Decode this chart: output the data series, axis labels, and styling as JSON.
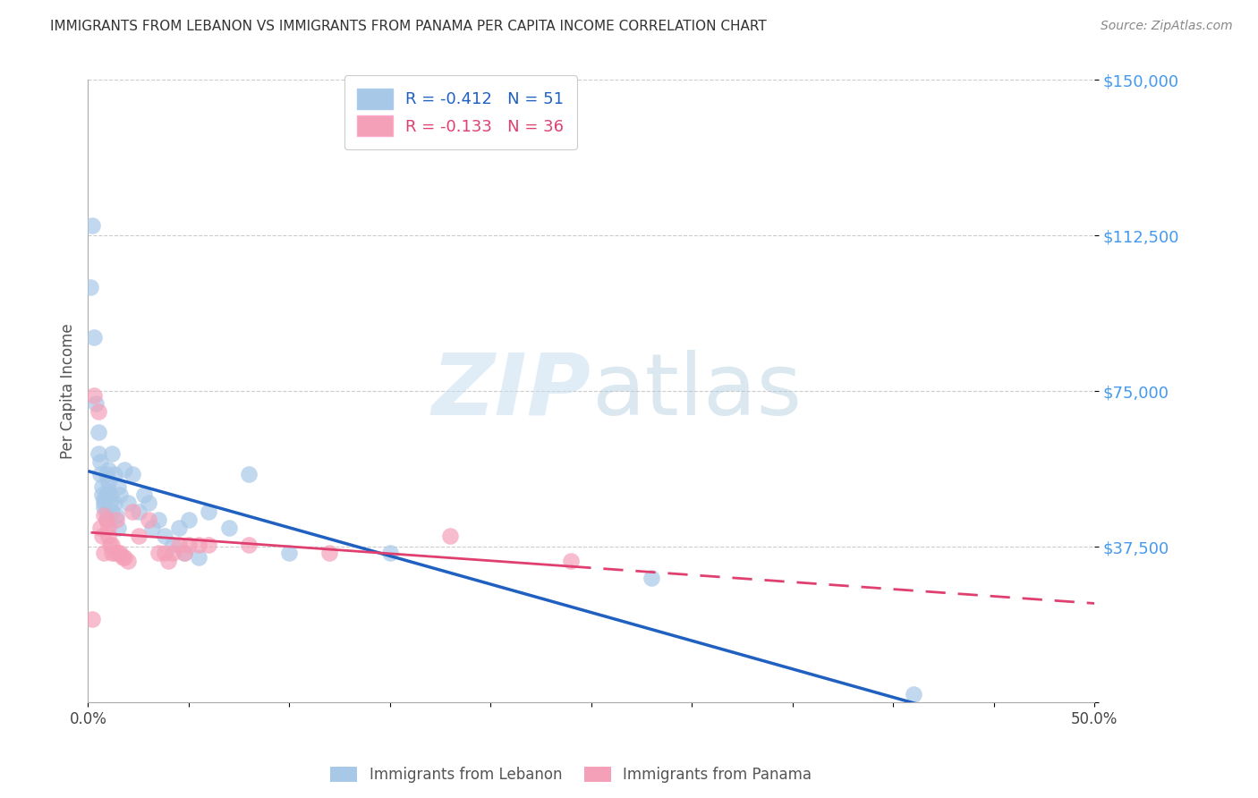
{
  "title": "IMMIGRANTS FROM LEBANON VS IMMIGRANTS FROM PANAMA PER CAPITA INCOME CORRELATION CHART",
  "source": "Source: ZipAtlas.com",
  "ylabel": "Per Capita Income",
  "xlim": [
    0,
    0.5
  ],
  "ylim": [
    0,
    150000
  ],
  "yticks": [
    0,
    37500,
    75000,
    112500,
    150000
  ],
  "ytick_labels": [
    "",
    "$37,500",
    "$75,000",
    "$112,500",
    "$150,000"
  ],
  "xtick_positions": [
    0.0,
    0.05,
    0.1,
    0.15,
    0.2,
    0.25,
    0.3,
    0.35,
    0.4,
    0.45,
    0.5
  ],
  "xtick_labels": [
    "0.0%",
    "",
    "",
    "",
    "",
    "",
    "",
    "",
    "",
    "",
    "50.0%"
  ],
  "legend_label1": "Immigrants from Lebanon",
  "legend_label2": "Immigrants from Panama",
  "R1": -0.412,
  "N1": 51,
  "R2": -0.133,
  "N2": 36,
  "color_blue": "#A8C8E8",
  "color_pink": "#F4A0B8",
  "line_color_blue": "#2060C0",
  "line_color_pink": "#E04070",
  "watermark_zip": "ZIP",
  "watermark_atlas": "atlas",
  "lebanon_x": [
    0.001,
    0.002,
    0.003,
    0.004,
    0.005,
    0.005,
    0.006,
    0.006,
    0.007,
    0.007,
    0.008,
    0.008,
    0.008,
    0.009,
    0.009,
    0.009,
    0.009,
    0.01,
    0.01,
    0.01,
    0.011,
    0.011,
    0.012,
    0.012,
    0.013,
    0.013,
    0.014,
    0.015,
    0.015,
    0.016,
    0.018,
    0.02,
    0.022,
    0.025,
    0.028,
    0.03,
    0.032,
    0.035,
    0.038,
    0.042,
    0.045,
    0.048,
    0.05,
    0.055,
    0.06,
    0.07,
    0.08,
    0.1,
    0.15,
    0.28,
    0.41
  ],
  "lebanon_y": [
    100000,
    115000,
    88000,
    72000,
    65000,
    60000,
    58000,
    55000,
    52000,
    50000,
    49000,
    48000,
    47000,
    55000,
    50000,
    46000,
    44000,
    56000,
    53000,
    51000,
    50000,
    48000,
    60000,
    46000,
    55000,
    48000,
    45000,
    52000,
    42000,
    50000,
    56000,
    48000,
    55000,
    46000,
    50000,
    48000,
    42000,
    44000,
    40000,
    38000,
    42000,
    36000,
    44000,
    35000,
    46000,
    42000,
    55000,
    36000,
    36000,
    30000,
    2000
  ],
  "panama_x": [
    0.002,
    0.003,
    0.005,
    0.006,
    0.007,
    0.008,
    0.008,
    0.009,
    0.01,
    0.01,
    0.011,
    0.012,
    0.012,
    0.013,
    0.014,
    0.015,
    0.016,
    0.017,
    0.018,
    0.02,
    0.022,
    0.025,
    0.03,
    0.035,
    0.038,
    0.04,
    0.042,
    0.045,
    0.048,
    0.05,
    0.055,
    0.06,
    0.08,
    0.12,
    0.18,
    0.24
  ],
  "panama_y": [
    20000,
    74000,
    70000,
    42000,
    40000,
    45000,
    36000,
    44000,
    42000,
    40000,
    38000,
    38000,
    36000,
    36000,
    44000,
    36000,
    36000,
    35000,
    35000,
    34000,
    46000,
    40000,
    44000,
    36000,
    36000,
    34000,
    36000,
    38000,
    36000,
    38000,
    38000,
    38000,
    38000,
    36000,
    40000,
    34000
  ]
}
